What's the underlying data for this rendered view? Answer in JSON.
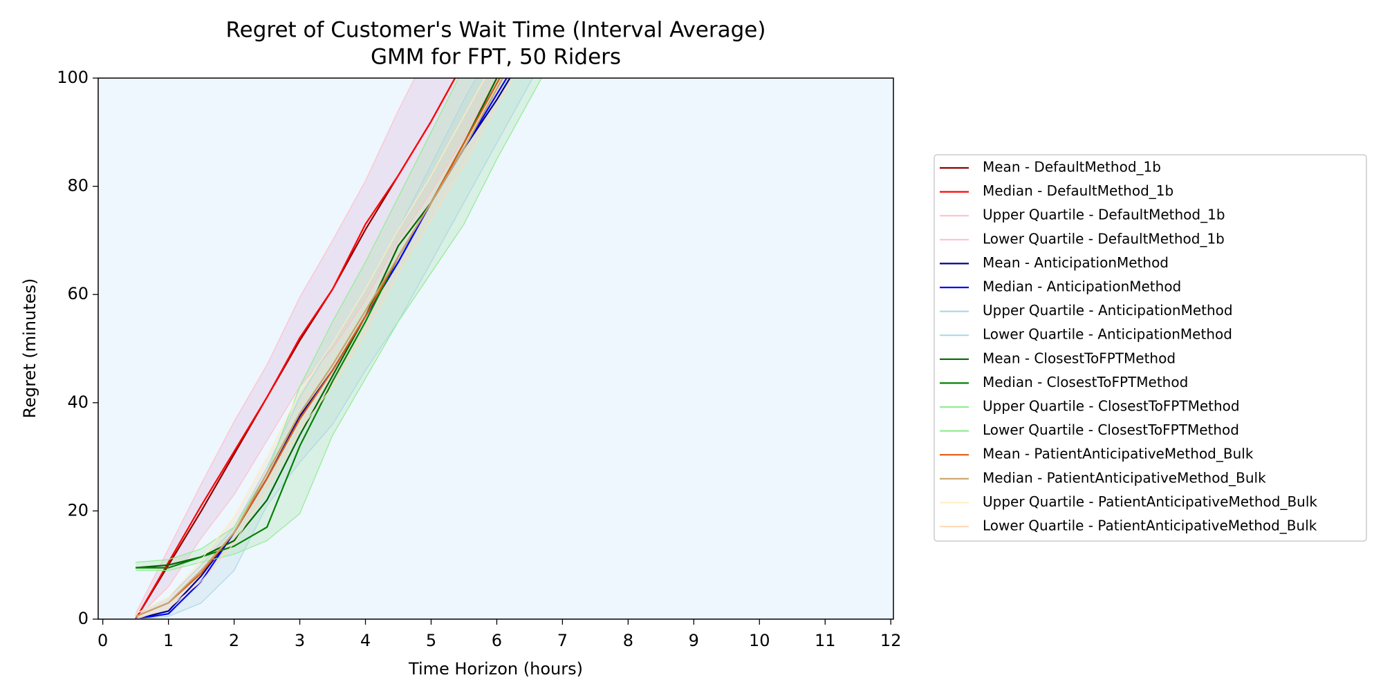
{
  "chart_data": {
    "type": "line",
    "title": "Regret of Customer's Wait Time (Interval Average)",
    "subtitle": "GMM for FPT, 50 Riders",
    "xlabel": "Time Horizon (hours)",
    "ylabel": "Regret (minutes)",
    "x": [
      0.5,
      1,
      1.5,
      2,
      2.5,
      3,
      3.5,
      4,
      4.5,
      5,
      5.5,
      6,
      6.5,
      7
    ],
    "xlim": [
      -0.07,
      12.04
    ],
    "xticks": [
      0,
      1,
      2,
      3,
      4,
      5,
      6,
      7,
      8,
      9,
      10,
      11,
      12
    ],
    "ylim": [
      0,
      100
    ],
    "yticks": [
      0,
      20,
      40,
      60,
      80,
      100
    ],
    "grid": false,
    "legend": "right",
    "background": "#eef6fe",
    "series": [
      {
        "name": "Mean - DefaultMethod_1b",
        "color": "#8b0000",
        "values": [
          0,
          10,
          20,
          30.5,
          41,
          51.5,
          61,
          72,
          82,
          92,
          103,
          null,
          null,
          null
        ]
      },
      {
        "name": "Median - DefaultMethod_1b",
        "color": "#ff0000",
        "values": [
          0,
          10.5,
          21,
          31,
          41,
          52,
          61,
          73,
          82,
          92,
          103,
          null,
          null,
          null
        ]
      },
      {
        "name": "Upper Quartile - DefaultMethod_1b",
        "color": "#ffc0cb",
        "fill": "#dcb4d6",
        "values": [
          1,
          13,
          25,
          36.5,
          47,
          59.5,
          70,
          81,
          94,
          106,
          null,
          null,
          null,
          null
        ]
      },
      {
        "name": "Lower Quartile - DefaultMethod_1b",
        "color": "#ffc0cb",
        "values": [
          0,
          6,
          15,
          23,
          33,
          43,
          50,
          59,
          70,
          79,
          89,
          100,
          110,
          null
        ]
      },
      {
        "name": "Mean - AnticipationMethod",
        "color": "#00008b",
        "values": [
          0,
          1.5,
          8,
          16,
          26,
          37.5,
          46,
          56,
          66,
          77,
          87,
          96,
          106,
          null
        ]
      },
      {
        "name": "Median - AnticipationMethod",
        "color": "#0000ff",
        "values": [
          0,
          1,
          7,
          16,
          26,
          37,
          46,
          56,
          66,
          77,
          87,
          97,
          107,
          null
        ]
      },
      {
        "name": "Upper Quartile - AnticipationMethod",
        "color": "#add8e6",
        "fill": "#b8d6e4",
        "values": [
          1,
          4,
          10,
          17,
          28,
          41,
          51,
          61,
          72,
          84,
          96,
          107,
          null,
          null
        ]
      },
      {
        "name": "Lower Quartile - AnticipationMethod",
        "color": "#add8e6",
        "values": [
          0,
          0.5,
          3,
          9,
          21,
          29,
          36,
          46,
          55,
          66,
          77,
          88,
          99,
          110
        ]
      },
      {
        "name": "Mean - ClosestToFPTMethod",
        "color": "#006400",
        "values": [
          9.5,
          10,
          11.5,
          14.5,
          22,
          34,
          45,
          56,
          69,
          77,
          88,
          100,
          111,
          null
        ]
      },
      {
        "name": "Median - ClosestToFPTMethod",
        "color": "#008000",
        "values": [
          9.5,
          9.5,
          11.5,
          13.5,
          17,
          32,
          44,
          55,
          67,
          77,
          88,
          99,
          110,
          null
        ]
      },
      {
        "name": "Upper Quartile - ClosestToFPTMethod",
        "color": "#90ee90",
        "fill": "#a8e0a8",
        "values": [
          10.5,
          11,
          13,
          17,
          27,
          43,
          55,
          66,
          78,
          90,
          102,
          null,
          null,
          null
        ]
      },
      {
        "name": "Lower Quartile - ClosestToFPTMethod",
        "color": "#90ee90",
        "values": [
          9,
          9,
          10.5,
          12,
          14.5,
          19.5,
          34,
          44.5,
          55,
          64,
          73,
          85,
          96,
          107
        ]
      },
      {
        "name": "Mean - PatientAnticipativeMethod_Bulk",
        "color": "#e05a0e",
        "values": [
          0.5,
          3,
          8.5,
          16,
          26,
          37,
          46,
          56,
          67,
          77,
          88,
          99,
          110,
          null
        ]
      },
      {
        "name": "Median - PatientAnticipativeMethod_Bulk",
        "color": "#c9a36a",
        "values": [
          0.5,
          3,
          9,
          16,
          27,
          38,
          47,
          57,
          67,
          77,
          87,
          98,
          109,
          null
        ]
      },
      {
        "name": "Upper Quartile - PatientAnticipativeMethod_Bulk",
        "color": "#fff0c0",
        "fill": "#f5d8c0",
        "values": [
          1,
          4,
          11,
          19,
          30,
          42,
          51,
          61,
          72,
          82,
          93,
          104,
          null,
          null
        ]
      },
      {
        "name": "Lower Quartile - PatientAnticipativeMethod_Bulk",
        "color": "#ffdab9",
        "values": [
          0,
          2,
          7,
          14,
          24,
          35,
          43,
          53,
          64,
          74,
          84,
          95,
          105,
          null
        ]
      }
    ]
  }
}
